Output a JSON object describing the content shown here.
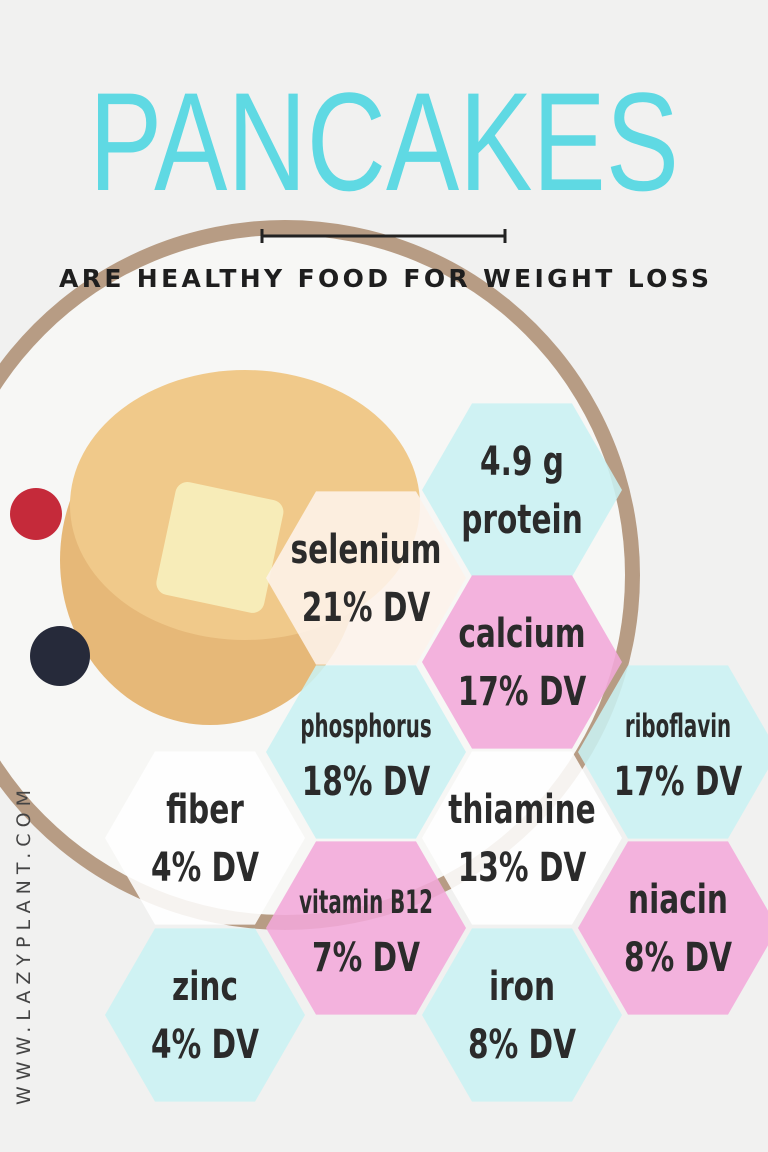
{
  "title": "PANCAKES",
  "subtitle": "ARE HEALTHY FOOD FOR WEIGHT LOSS",
  "website": "WWW.LAZYPLANT.COM",
  "hexagons": [
    {
      "lines": [
        "4.9 g",
        "protein"
      ],
      "color": "#c9f1f3"
    },
    {
      "lines": [
        "selenium",
        "21% DV"
      ],
      "color": "#fdf3ea"
    },
    {
      "lines": [
        "calcium",
        "17% DV"
      ],
      "color": "#f2a9da"
    },
    {
      "lines": [
        "phosphorus",
        "18% DV"
      ],
      "color": "#c9f1f3"
    },
    {
      "lines": [
        "riboflavin",
        "17% DV"
      ],
      "color": "#c9f1f3"
    },
    {
      "lines": [
        "fiber",
        "4% DV"
      ],
      "color": "#ffffff"
    },
    {
      "lines": [
        "thiamine",
        "13% DV"
      ],
      "color": "#ffffff"
    },
    {
      "lines": [
        "vitamin B12",
        "7% DV"
      ],
      "color": "#f2a9da"
    },
    {
      "lines": [
        "niacin",
        "8% DV"
      ],
      "color": "#f2a9da"
    },
    {
      "lines": [
        "zinc",
        "4% DV"
      ],
      "color": "#c9f1f3"
    },
    {
      "lines": [
        "iron",
        "8% DV"
      ],
      "color": "#c9f1f3"
    }
  ]
}
